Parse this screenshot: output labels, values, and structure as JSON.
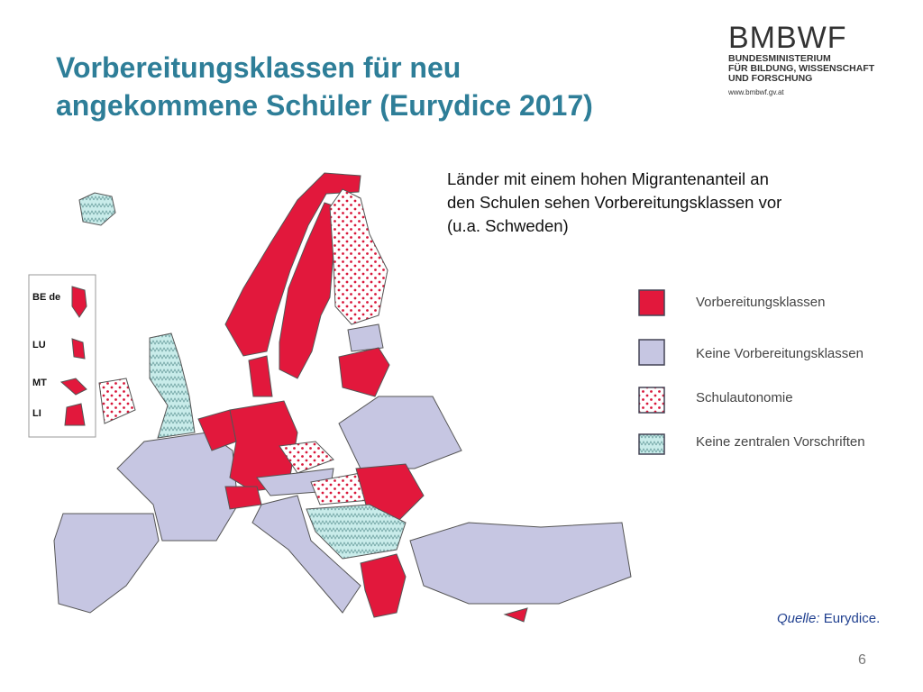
{
  "header": {
    "title_lines": [
      "Vorbereitungsklassen für neu",
      "angekommene Schüler (Eurydice 2017)"
    ]
  },
  "logo": {
    "name": "BMBWF",
    "lines": [
      "BUNDESMINISTERIUM",
      "FÜR BILDUNG, WISSENSCHAFT",
      "UND FORSCHUNG"
    ],
    "url": "www.bmbwf.gv.at"
  },
  "description": {
    "lines": [
      "Länder mit einem hohen Migrantenanteil  an",
      "den Schulen sehen Vorbereitungsklassen vor",
      "(u.a. Schweden)"
    ]
  },
  "legend": [
    {
      "label": "Vorbereitungsklassen"
    },
    {
      "label": "Keine Vorbereitungsklassen"
    },
    {
      "label": "Schulautonomie"
    },
    {
      "label": "Keine zentralen Vorschriften"
    }
  ],
  "inset": [
    "BE de",
    "LU",
    "MT",
    "LI"
  ],
  "source": {
    "label": "Quelle:",
    "name": "Eurydice."
  },
  "page_number": "6"
}
